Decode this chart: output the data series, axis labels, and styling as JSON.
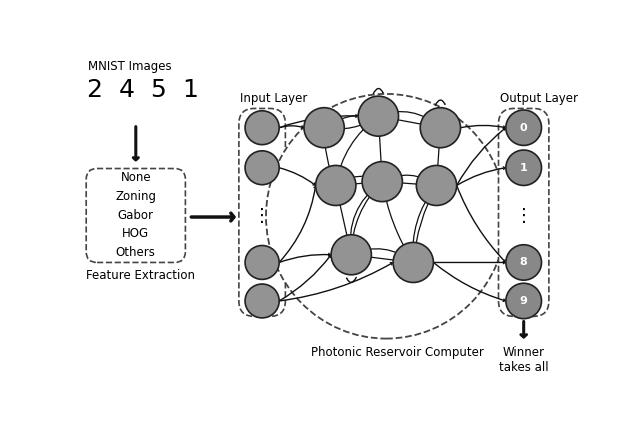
{
  "background": "#ffffff",
  "node_color_fill": [
    "#888888",
    "#999999",
    "#aaaaaa"
  ],
  "node_color": "#939393",
  "node_edge_color": "#222222",
  "arrow_color": "#111111",
  "dashed_color": "#444444",
  "mnist_label": "MNIST Images",
  "feature_box_label": "Feature Extraction",
  "feature_items": [
    "None",
    "Zoning",
    "Gabor",
    "HOG",
    "Others"
  ],
  "input_layer_label": "Input Layer",
  "reservoir_label": "Photonic Reservoir Computer",
  "output_layer_label": "Output Layer",
  "output_nodes_labels": [
    "0",
    "1",
    "8",
    "9"
  ],
  "winner_label": "Winner\ntakes all",
  "fig_w": 6.4,
  "fig_h": 4.29,
  "dpi": 100
}
